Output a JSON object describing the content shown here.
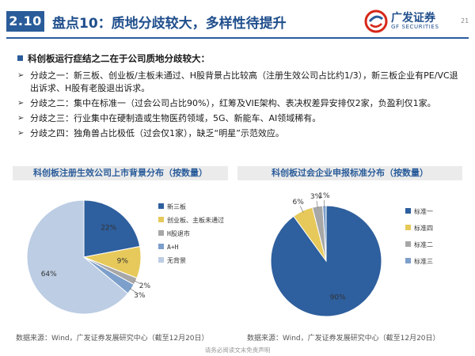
{
  "header": {
    "section_number": "2.10",
    "title": "盘点10：质地分歧较大，多样性待提升",
    "logo_cn": "广发证券",
    "logo_en": "GF SECURITIES",
    "page_number": "21",
    "colors": {
      "primary": "#2a5c9a",
      "logo_red": "#d62718"
    }
  },
  "main_bullet": "科创板运行症结之二在于公司质地分歧较大：",
  "points": [
    "分歧之一：新三板、创业板/主板未通过、H股背景占比较高（注册生效公司占比约1/3），新三板企业有PE/VC退出诉求、H股有老股退出诉求。",
    "分歧之二：集中在标准一（过会公司占比90%），红筹及VIE架构、表决权差异安排仅2家，负盈利仅1家。",
    "分歧之三：行业集中在硬制造或生物医药领域，5G、新能车、AI领域稀有。",
    "分歧之四：独角兽占比极低（过会仅1家），缺乏“明星”示范效应。"
  ],
  "left_chart": {
    "header": "科创板注册生效公司上市背景分布（按数量）",
    "source": "数据来源：Wind，广发证券发展研究中心（截至12月20日）"
  },
  "right_chart": {
    "header": "科创板过会企业申报标准分布（按数量）",
    "source": "数据来源：Wind，广发证券发展研究中心（截至12月20日）"
  },
  "footer": "请务必阅读文末免责声明",
  "chart_data": [
    {
      "type": "pie",
      "title": "科创板注册生效公司上市背景分布（按数量）",
      "categories": [
        "新三板",
        "创业板、主板未通过",
        "H股退市",
        "A+H",
        "无背景"
      ],
      "values": [
        22,
        9,
        2,
        3,
        64
      ],
      "labels": [
        "22%",
        "9%",
        "2%",
        "3%",
        "64%"
      ],
      "colors": [
        "#2e5f9e",
        "#e6c95a",
        "#a7a7a7",
        "#7d9fcb",
        "#bccde4"
      ],
      "legend_position": "right"
    },
    {
      "type": "pie",
      "title": "科创板过会企业申报标准分布（按数量）",
      "categories": [
        "标准一",
        "标准四",
        "标准二",
        "标准三"
      ],
      "values": [
        90,
        6,
        3,
        1
      ],
      "labels": [
        "90%",
        "6%",
        "3%",
        "1%"
      ],
      "colors": [
        "#2e5f9e",
        "#e6c95a",
        "#a7a7a7",
        "#7d9fcb"
      ],
      "legend_position": "right"
    }
  ]
}
